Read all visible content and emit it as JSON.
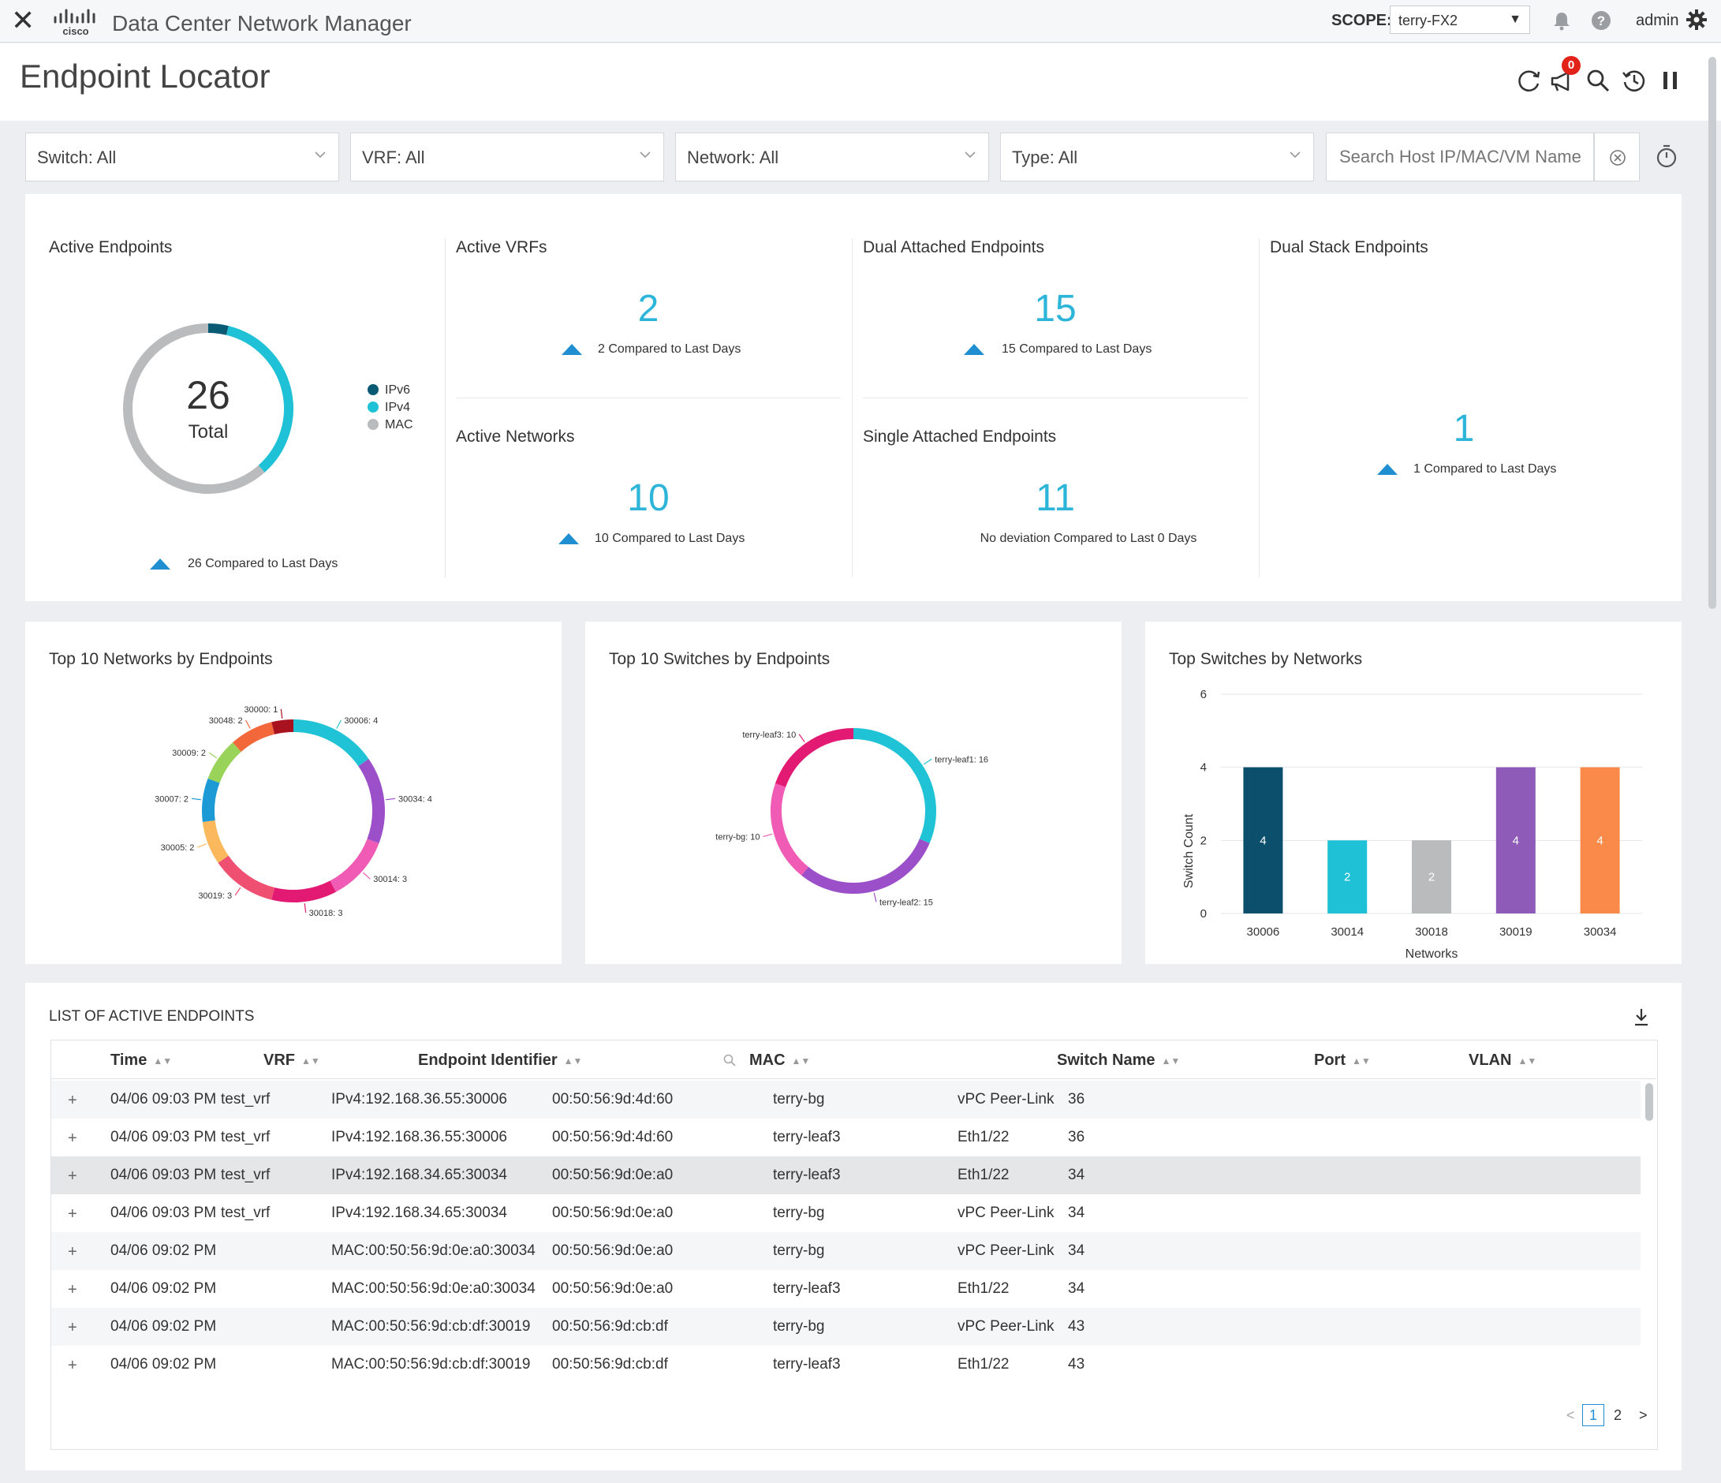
{
  "topbar": {
    "app_title": "Data Center Network Manager",
    "logo_text": "cisco",
    "scope_label": "SCOPE:",
    "scope_value": "terry-FX2",
    "user": "admin"
  },
  "page": {
    "title": "Endpoint Locator",
    "notification_count": "0"
  },
  "filters": {
    "switch": "Switch: All",
    "vrf": "VRF: All",
    "network": "Network: All",
    "type": "Type: All",
    "search_placeholder": "Search Host IP/MAC/VM Name"
  },
  "summary": {
    "active_endpoints": {
      "title": "Active Endpoints",
      "total": "26",
      "total_label": "Total",
      "compare": "26 Compared to Last Days",
      "legend": [
        {
          "label": "IPv6",
          "color": "#0b5a73"
        },
        {
          "label": "IPv4",
          "color": "#1fc1d6"
        },
        {
          "label": "MAC",
          "color": "#b9bbbd"
        }
      ],
      "chart_data": {
        "type": "pie",
        "labels": [
          "IPv6",
          "IPv4",
          "MAC"
        ],
        "values": [
          1,
          9,
          16
        ]
      }
    },
    "active_vrfs": {
      "title": "Active VRFs",
      "value": "2",
      "compare": "2 Compared to Last Days"
    },
    "active_networks": {
      "title": "Active Networks",
      "value": "10",
      "compare": "10 Compared to Last Days"
    },
    "dual_attached": {
      "title": "Dual Attached Endpoints",
      "value": "15",
      "compare": "15 Compared to Last Days"
    },
    "single_attached": {
      "title": "Single Attached Endpoints",
      "value": "11",
      "compare": "No deviation Compared to Last 0 Days"
    },
    "dual_stack": {
      "title": "Dual Stack Endpoints",
      "value": "1",
      "compare": "1 Compared to Last Days"
    }
  },
  "charts": {
    "networks": {
      "title": "Top 10 Networks by Endpoints",
      "chart_data": {
        "type": "pie",
        "slices": [
          {
            "label": "30006: 4",
            "value": 4,
            "color": "#20c3d5"
          },
          {
            "label": "30034: 4",
            "value": 4,
            "color": "#9b4fc8"
          },
          {
            "label": "30014: 3",
            "value": 3,
            "color": "#f05cb5"
          },
          {
            "label": "30018: 3",
            "value": 3,
            "color": "#e31a74"
          },
          {
            "label": "30019: 3",
            "value": 3,
            "color": "#ef4f70"
          },
          {
            "label": "30005: 2",
            "value": 2,
            "color": "#fbb85d"
          },
          {
            "label": "30007: 2",
            "value": 2,
            "color": "#1c9ad6"
          },
          {
            "label": "30009: 2",
            "value": 2,
            "color": "#9ad35a"
          },
          {
            "label": "30048: 2",
            "value": 2,
            "color": "#f2683a"
          },
          {
            "label": "30000: 1",
            "value": 1,
            "color": "#a8121e"
          }
        ]
      }
    },
    "switches": {
      "title": "Top 10 Switches by Endpoints",
      "chart_data": {
        "type": "pie",
        "slices": [
          {
            "label": "terry-leaf1: 16",
            "value": 16,
            "color": "#20c3d5"
          },
          {
            "label": "terry-leaf2: 15",
            "value": 15,
            "color": "#9b4fc8"
          },
          {
            "label": "terry-bg: 10",
            "value": 10,
            "color": "#f05cb5"
          },
          {
            "label": "terry-leaf3: 10",
            "value": 10,
            "color": "#e31a74"
          }
        ]
      }
    },
    "switches_by_networks": {
      "title": "Top Switches by Networks",
      "chart_data": {
        "type": "bar",
        "categories": [
          "30006",
          "30014",
          "30018",
          "30019",
          "30034"
        ],
        "values": [
          4,
          2,
          2,
          4,
          4
        ],
        "colors": [
          "#0b4f6c",
          "#1fc1d6",
          "#b9bbbd",
          "#8e5bb8",
          "#f98a4a"
        ],
        "xlabel": "Networks",
        "ylabel": "Switch Count",
        "yticks": [
          "0",
          "2",
          "4",
          "6"
        ],
        "ylim": [
          0,
          6
        ]
      }
    }
  },
  "table": {
    "title": "LIST OF ACTIVE ENDPOINTS",
    "columns": [
      "Time",
      "VRF",
      "Endpoint Identifier",
      "MAC",
      "Switch Name",
      "Port",
      "VLAN"
    ],
    "rows": [
      [
        "04/06 09:03 PM",
        "test_vrf",
        "IPv4:192.168.36.55:30006",
        "00:50:56:9d:4d:60",
        "terry-bg",
        "vPC Peer-Link",
        "36"
      ],
      [
        "04/06 09:03 PM",
        "test_vrf",
        "IPv4:192.168.36.55:30006",
        "00:50:56:9d:4d:60",
        "terry-leaf3",
        "Eth1/22",
        "36"
      ],
      [
        "04/06 09:03 PM",
        "test_vrf",
        "IPv4:192.168.34.65:30034",
        "00:50:56:9d:0e:a0",
        "terry-leaf3",
        "Eth1/22",
        "34"
      ],
      [
        "04/06 09:03 PM",
        "test_vrf",
        "IPv4:192.168.34.65:30034",
        "00:50:56:9d:0e:a0",
        "terry-bg",
        "vPC Peer-Link",
        "34"
      ],
      [
        "04/06 09:02 PM",
        "",
        "MAC:00:50:56:9d:0e:a0:30034",
        "00:50:56:9d:0e:a0",
        "terry-bg",
        "vPC Peer-Link",
        "34"
      ],
      [
        "04/06 09:02 PM",
        "",
        "MAC:00:50:56:9d:0e:a0:30034",
        "00:50:56:9d:0e:a0",
        "terry-leaf3",
        "Eth1/22",
        "34"
      ],
      [
        "04/06 09:02 PM",
        "",
        "MAC:00:50:56:9d:cb:df:30019",
        "00:50:56:9d:cb:df",
        "terry-bg",
        "vPC Peer-Link",
        "43"
      ],
      [
        "04/06 09:02 PM",
        "",
        "MAC:00:50:56:9d:cb:df:30019",
        "00:50:56:9d:cb:df",
        "terry-leaf3",
        "Eth1/22",
        "43"
      ]
    ],
    "pager": {
      "prev": "<",
      "current": "1",
      "next_page": "2",
      "next": ">"
    }
  }
}
